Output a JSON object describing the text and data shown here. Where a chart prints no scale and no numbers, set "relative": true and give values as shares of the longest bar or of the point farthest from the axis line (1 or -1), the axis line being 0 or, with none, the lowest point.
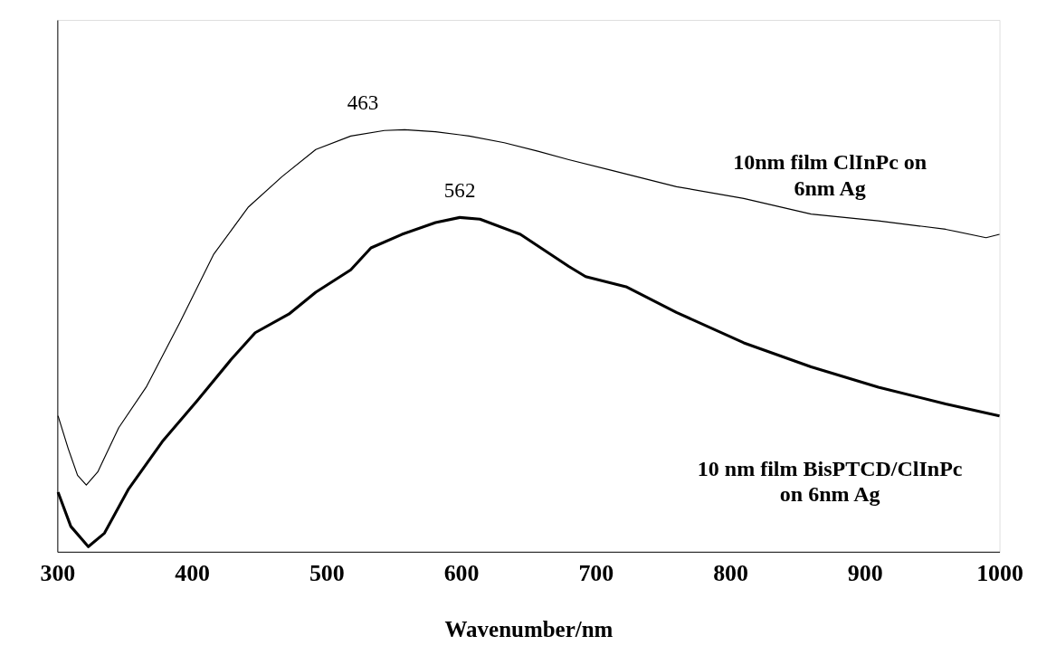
{
  "chart_data": {
    "type": "line",
    "relative": true,
    "xlabel": "Wavenumber/nm",
    "xlim": [
      300,
      1000
    ],
    "xticks": [
      300,
      400,
      500,
      600,
      700,
      800,
      900,
      1000
    ],
    "grid": false,
    "series": [
      {
        "name": "10nm film ClInPc on\n6nm Ag",
        "color": "#000000",
        "x": [
          300.5,
          308,
          315,
          321.5,
          330,
          345.6,
          366,
          391,
          416,
          442,
          467,
          492,
          518,
          543,
          558,
          581,
          606,
          632,
          657,
          680,
          710,
          760,
          810,
          860,
          910,
          960,
          990,
          1000
        ],
        "values": [
          0.322,
          0.245,
          0.181,
          0.158,
          0.189,
          0.294,
          0.39,
          0.543,
          0.704,
          0.817,
          0.889,
          0.953,
          0.985,
          0.998,
          1.0,
          0.995,
          0.985,
          0.969,
          0.949,
          0.929,
          0.905,
          0.865,
          0.837,
          0.8,
          0.784,
          0.764,
          0.744,
          0.752
        ]
      },
      {
        "name": "10 nm film BisPTCD/ClInPc\non 6nm Ag",
        "color": "#000000",
        "x": [
          300.5,
          310,
          323,
          335,
          353,
          378,
          404,
          429,
          447,
          472,
          492,
          518,
          533,
          556,
          581,
          599,
          614,
          644,
          680,
          692.5,
          722.5,
          760,
          810,
          860,
          910,
          960,
          1000
        ],
        "values": [
          0.141,
          0.06,
          0.012,
          0.044,
          0.149,
          0.261,
          0.358,
          0.455,
          0.519,
          0.563,
          0.615,
          0.668,
          0.72,
          0.752,
          0.78,
          0.792,
          0.788,
          0.752,
          0.676,
          0.652,
          0.628,
          0.567,
          0.495,
          0.438,
          0.39,
          0.35,
          0.322
        ]
      }
    ],
    "annotations": [
      {
        "text": "463",
        "x": 527,
        "y": 1.0
      },
      {
        "text": "562",
        "x": 599,
        "y": 0.792
      }
    ]
  }
}
